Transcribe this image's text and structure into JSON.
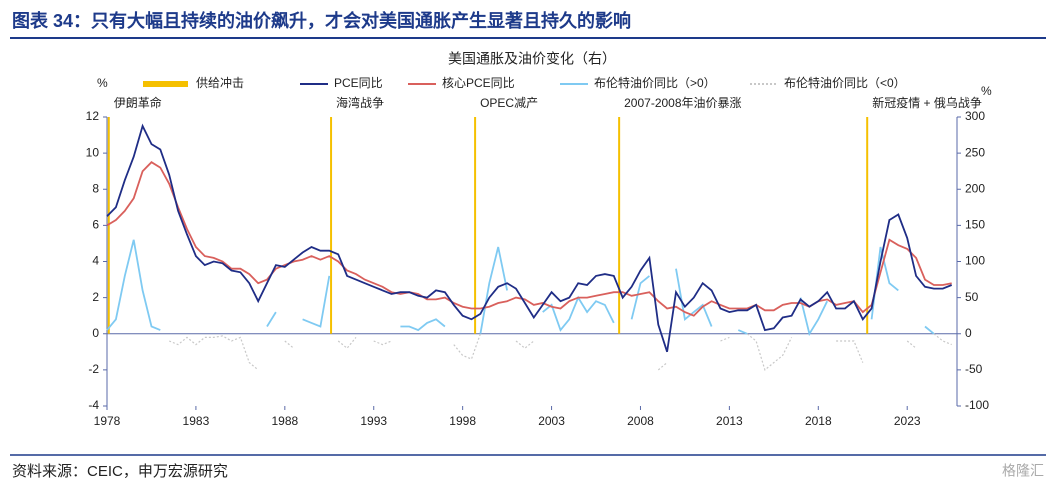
{
  "header": {
    "title": "图表 34：只有大幅且持续的油价飙升，才会对美国通胀产生显著且持久的影响"
  },
  "footer": {
    "source": "资料来源：CEIC，申万宏源研究",
    "watermark": "格隆汇"
  },
  "chart_data": {
    "type": "line",
    "title": "美国通胀及油价变化（右）",
    "y_unit": "%",
    "y2_unit": "%",
    "xlim": [
      1978,
      2025.8
    ],
    "xticks": [
      1978,
      1983,
      1988,
      1993,
      1998,
      2003,
      2008,
      2013,
      2018,
      2023
    ],
    "ylim": [
      -4,
      12
    ],
    "yticks": [
      -4,
      -2,
      0,
      2,
      4,
      6,
      8,
      10,
      12
    ],
    "y2lim": [
      -100,
      300
    ],
    "y2ticks": [
      -100,
      -50,
      0,
      50,
      100,
      150,
      200,
      250,
      300
    ],
    "shocks": {
      "name": "供给冲击",
      "color": "#f5c000",
      "x": [
        1978.1,
        1990.6,
        1998.7,
        2006.8,
        2020.75
      ],
      "labels": [
        "伊朗革命",
        "海湾战争",
        "OPEC减产",
        "2007-2008年油价暴涨",
        "新冠疫情 + 俄乌战争"
      ]
    },
    "x": [
      1978,
      1978.5,
      1979,
      1979.5,
      1980,
      1980.5,
      1981,
      1981.5,
      1982,
      1982.5,
      1983,
      1983.5,
      1984,
      1984.5,
      1985,
      1985.5,
      1986,
      1986.5,
      1987,
      1987.5,
      1988,
      1988.5,
      1989,
      1989.5,
      1990,
      1990.5,
      1991,
      1991.5,
      1992,
      1992.5,
      1993,
      1993.5,
      1994,
      1994.5,
      1995,
      1995.5,
      1996,
      1996.5,
      1997,
      1997.5,
      1998,
      1998.5,
      1999,
      1999.5,
      2000,
      2000.5,
      2001,
      2001.5,
      2002,
      2002.5,
      2003,
      2003.5,
      2004,
      2004.5,
      2005,
      2005.5,
      2006,
      2006.5,
      2007,
      2007.5,
      2008,
      2008.5,
      2009,
      2009.5,
      2010,
      2010.5,
      2011,
      2011.5,
      2012,
      2012.5,
      2013,
      2013.5,
      2014,
      2014.5,
      2015,
      2015.5,
      2016,
      2016.5,
      2017,
      2017.5,
      2018,
      2018.5,
      2019,
      2019.5,
      2020,
      2020.5,
      2021,
      2021.5,
      2022,
      2022.5,
      2023,
      2023.5,
      2024,
      2024.5,
      2025,
      2025.5
    ],
    "series": [
      {
        "name": "布伦特油价同比（<0）",
        "color": "#c8c8c8",
        "axis": "y2",
        "dash": true,
        "values": [
          null,
          null,
          null,
          null,
          null,
          null,
          null,
          -10,
          -15,
          -5,
          -15,
          -5,
          -5,
          -3,
          -10,
          -5,
          -40,
          -50,
          null,
          null,
          -10,
          -20,
          null,
          null,
          null,
          null,
          -10,
          -20,
          -5,
          null,
          -10,
          -15,
          -10,
          null,
          null,
          null,
          null,
          null,
          null,
          -15,
          -30,
          -35,
          0,
          null,
          null,
          null,
          -10,
          -20,
          -10,
          null,
          null,
          null,
          null,
          null,
          null,
          null,
          null,
          null,
          -10,
          null,
          null,
          null,
          -50,
          -40,
          null,
          null,
          null,
          null,
          null,
          -10,
          -5,
          null,
          0,
          -10,
          -50,
          -40,
          -30,
          -5,
          null,
          0,
          null,
          null,
          -10,
          -10,
          -10,
          -40,
          null,
          null,
          null,
          null,
          -10,
          -20,
          null,
          0,
          -10,
          -15
        ]
      },
      {
        "name": "布伦特油价同比（>0）",
        "color": "#7fcaf2",
        "axis": "y2",
        "values": [
          5,
          20,
          80,
          130,
          60,
          10,
          5,
          null,
          null,
          null,
          null,
          null,
          null,
          null,
          null,
          null,
          null,
          null,
          10,
          30,
          null,
          null,
          20,
          15,
          10,
          80,
          null,
          null,
          null,
          5,
          null,
          null,
          null,
          10,
          10,
          5,
          15,
          20,
          10,
          null,
          null,
          null,
          0,
          70,
          120,
          60,
          null,
          null,
          null,
          30,
          40,
          5,
          20,
          50,
          30,
          45,
          40,
          15,
          null,
          20,
          70,
          80,
          null,
          null,
          90,
          20,
          30,
          40,
          10,
          null,
          null,
          5,
          0,
          null,
          null,
          null,
          null,
          null,
          50,
          0,
          20,
          45,
          null,
          null,
          null,
          null,
          20,
          120,
          70,
          60,
          null,
          null,
          10,
          0,
          null,
          null
        ]
      },
      {
        "name": "核心PCE同比",
        "color": "#d9605c",
        "values": [
          6.0,
          6.3,
          6.8,
          7.5,
          9.0,
          9.5,
          9.2,
          8.3,
          7.0,
          5.8,
          4.8,
          4.3,
          4.2,
          4.0,
          3.6,
          3.6,
          3.3,
          2.8,
          3.0,
          3.6,
          3.8,
          4.0,
          4.1,
          4.3,
          4.1,
          4.3,
          4.0,
          3.5,
          3.3,
          3.0,
          2.8,
          2.6,
          2.3,
          2.2,
          2.3,
          2.2,
          1.9,
          1.9,
          2.0,
          1.7,
          1.5,
          1.4,
          1.4,
          1.5,
          1.7,
          1.8,
          2.0,
          1.9,
          1.6,
          1.7,
          1.5,
          1.4,
          1.8,
          2.0,
          2.0,
          2.1,
          2.2,
          2.3,
          2.3,
          2.1,
          2.2,
          2.3,
          1.8,
          1.4,
          1.5,
          1.2,
          1.0,
          1.5,
          1.8,
          1.6,
          1.4,
          1.4,
          1.4,
          1.6,
          1.3,
          1.3,
          1.6,
          1.7,
          1.7,
          1.5,
          1.8,
          1.9,
          1.6,
          1.7,
          1.8,
          1.2,
          1.6,
          3.4,
          5.2,
          4.9,
          4.7,
          4.2,
          3.0,
          2.7,
          2.7,
          2.8
        ]
      },
      {
        "name": "PCE同比",
        "color": "#1f2d86",
        "values": [
          6.5,
          7.0,
          8.5,
          9.8,
          11.5,
          10.5,
          10.2,
          8.8,
          6.8,
          5.5,
          4.3,
          3.8,
          4.0,
          3.9,
          3.5,
          3.4,
          2.8,
          1.8,
          2.8,
          3.8,
          3.7,
          4.1,
          4.5,
          4.8,
          4.6,
          4.6,
          4.4,
          3.2,
          3.0,
          2.8,
          2.6,
          2.4,
          2.2,
          2.3,
          2.3,
          2.1,
          2.0,
          2.4,
          2.3,
          1.6,
          1.0,
          0.8,
          1.1,
          2.0,
          2.6,
          2.8,
          2.5,
          1.7,
          0.9,
          1.6,
          2.3,
          1.8,
          2.0,
          2.8,
          2.7,
          3.2,
          3.3,
          3.2,
          2.0,
          2.6,
          3.5,
          4.2,
          0.5,
          -1.0,
          2.3,
          1.5,
          2.0,
          2.8,
          2.4,
          1.4,
          1.2,
          1.3,
          1.3,
          1.6,
          0.2,
          0.3,
          0.9,
          1.0,
          1.9,
          1.5,
          1.8,
          2.3,
          1.4,
          1.4,
          1.8,
          0.8,
          1.4,
          4.0,
          6.3,
          6.6,
          5.3,
          3.2,
          2.6,
          2.5,
          2.5,
          2.7
        ]
      }
    ]
  }
}
